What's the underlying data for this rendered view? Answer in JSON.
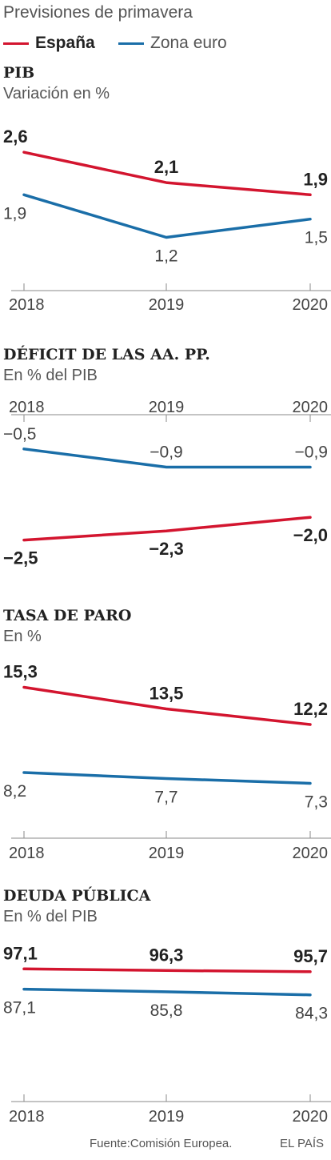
{
  "header": {
    "title": "Previsiones de primavera",
    "legend": [
      {
        "label": "España",
        "color": "#d3152f"
      },
      {
        "label": "Zona euro",
        "color": "#1a6ea8"
      }
    ]
  },
  "chart_data": [
    {
      "type": "line",
      "title": "PIB",
      "subtitle": "Variación en %",
      "categories": [
        "2018",
        "2019",
        "2020"
      ],
      "axis_position": "bottom",
      "series": [
        {
          "name": "España",
          "values": [
            2.6,
            2.1,
            1.9
          ],
          "labels": [
            "2,6",
            "2,1",
            "1,9"
          ],
          "color": "#d3152f",
          "bold": true
        },
        {
          "name": "Zona euro",
          "values": [
            1.9,
            1.2,
            1.5
          ],
          "labels": [
            "1,9",
            "1,2",
            "1,5"
          ],
          "color": "#1a6ea8",
          "bold": false
        }
      ]
    },
    {
      "type": "line",
      "title": "DÉFICIT DE LAS AA. PP.",
      "subtitle": "En % del PIB",
      "categories": [
        "2018",
        "2019",
        "2020"
      ],
      "axis_position": "top",
      "series": [
        {
          "name": "España",
          "values": [
            -2.5,
            -2.3,
            -2.0
          ],
          "labels": [
            "−2,5",
            "−2,3",
            "−2,0"
          ],
          "color": "#d3152f",
          "bold": true
        },
        {
          "name": "Zona euro",
          "values": [
            -0.5,
            -0.9,
            -0.9
          ],
          "labels": [
            "−0,5",
            "−0,9",
            "−0,9"
          ],
          "color": "#1a6ea8",
          "bold": false
        }
      ]
    },
    {
      "type": "line",
      "title": "TASA DE PARO",
      "subtitle": "En %",
      "categories": [
        "2018",
        "2019",
        "2020"
      ],
      "axis_position": "bottom",
      "series": [
        {
          "name": "España",
          "values": [
            15.3,
            13.5,
            12.2
          ],
          "labels": [
            "15,3",
            "13,5",
            "12,2"
          ],
          "color": "#d3152f",
          "bold": true
        },
        {
          "name": "Zona euro",
          "values": [
            8.2,
            7.7,
            7.3
          ],
          "labels": [
            "8,2",
            "7,7",
            "7,3"
          ],
          "color": "#1a6ea8",
          "bold": false
        }
      ]
    },
    {
      "type": "line",
      "title": "DEUDA PÚBLICA",
      "subtitle": "En % del PIB",
      "categories": [
        "2018",
        "2019",
        "2020"
      ],
      "axis_position": "bottom",
      "series": [
        {
          "name": "España",
          "values": [
            97.1,
            96.3,
            95.7
          ],
          "labels": [
            "97,1",
            "96,3",
            "95,7"
          ],
          "color": "#d3152f",
          "bold": true
        },
        {
          "name": "Zona euro",
          "values": [
            87.1,
            85.8,
            84.3
          ],
          "labels": [
            "87,1",
            "85,8",
            "84,3"
          ],
          "color": "#1a6ea8",
          "bold": false
        }
      ]
    }
  ],
  "footer": {
    "source": "Fuente:Comisión Europea.",
    "brand": "EL PAÍS"
  }
}
